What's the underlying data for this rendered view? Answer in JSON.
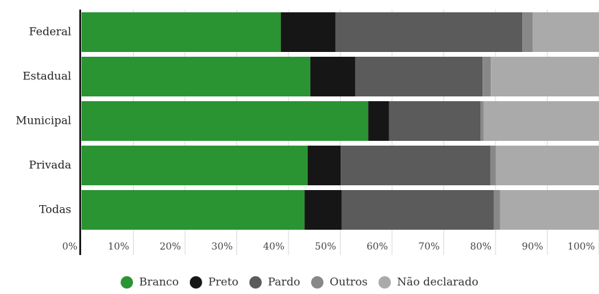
{
  "chart_data": {
    "type": "bar",
    "orientation": "horizontal",
    "stacked": true,
    "normalized": true,
    "categories": [
      "Federal",
      "Estadual",
      "Municipal",
      "Privada",
      "Todas"
    ],
    "series": [
      {
        "name": "Branco",
        "color": "#2a9433",
        "values": [
          38.5,
          44.2,
          55.4,
          43.7,
          43.1
        ]
      },
      {
        "name": "Preto",
        "color": "#161616",
        "values": [
          10.6,
          8.7,
          4.0,
          6.4,
          7.2
        ]
      },
      {
        "name": "Pardo",
        "color": "#5b5b5b",
        "values": [
          36.1,
          24.6,
          17.7,
          28.9,
          29.4
        ]
      },
      {
        "name": "Outros",
        "color": "#888888",
        "values": [
          2.0,
          1.6,
          0.6,
          1.1,
          1.2
        ]
      },
      {
        "name": "Não declarado",
        "color": "#aaaaaa",
        "values": [
          12.8,
          20.9,
          22.3,
          19.9,
          19.1
        ]
      }
    ],
    "ticks": [
      "0%",
      "10%",
      "20%",
      "30%",
      "40%",
      "50%",
      "60%",
      "70%",
      "80%",
      "90%",
      "100%"
    ],
    "xlim": [
      0,
      100
    ],
    "grid": true,
    "legend": "bottom-center",
    "title": "",
    "xlabel": "",
    "ylabel": ""
  }
}
